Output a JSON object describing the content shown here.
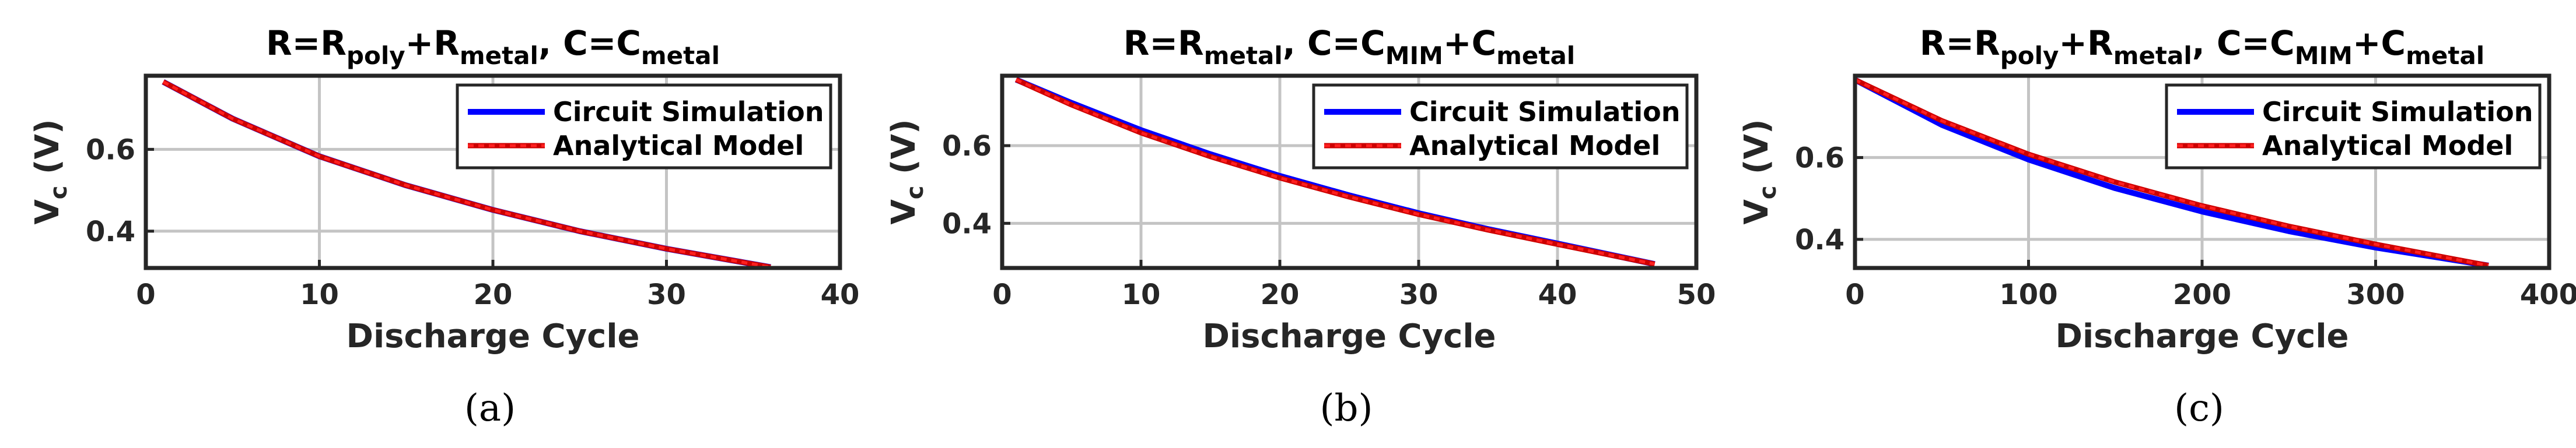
{
  "colors": {
    "simulation": "#0000ff",
    "model": "#cc0000",
    "model_dots": "#ff2020",
    "grid": "#c4c4c4",
    "axis": "#262626"
  },
  "legend": {
    "simulation_label": "Circuit Simulation",
    "model_label": "Analytical Model"
  },
  "chart_data": [
    {
      "type": "line",
      "title_parts": [
        {
          "text": "R=R",
          "sub": false
        },
        {
          "text": "poly",
          "sub": true
        },
        {
          "text": "+R",
          "sub": false
        },
        {
          "text": "metal",
          "sub": true
        },
        {
          "text": ", C=C",
          "sub": false
        },
        {
          "text": "metal",
          "sub": true
        }
      ],
      "xlabel": "Discharge Cycle",
      "ylabel": "V",
      "ylabel_sub": "c",
      "ylabel_unit": "(V)",
      "xlim": [
        0,
        40
      ],
      "ylim": [
        0.31,
        0.78
      ],
      "xticks": [
        0,
        10,
        20,
        30,
        40
      ],
      "yticks": [
        0.4,
        0.6
      ],
      "ytick_labels": [
        "0.4",
        "0.6"
      ],
      "legend_position": "top-right",
      "caption": "(a)",
      "series": [
        {
          "name": "Circuit Simulation",
          "x": [
            1,
            5,
            10,
            15,
            20,
            25,
            30,
            36
          ],
          "y": [
            0.765,
            0.675,
            0.583,
            0.512,
            0.452,
            0.4,
            0.357,
            0.312
          ]
        },
        {
          "name": "Analytical Model",
          "x": [
            1,
            5,
            10,
            15,
            20,
            25,
            30,
            36
          ],
          "y": [
            0.765,
            0.675,
            0.583,
            0.512,
            0.452,
            0.4,
            0.357,
            0.312
          ]
        }
      ]
    },
    {
      "type": "line",
      "title_parts": [
        {
          "text": "R=R",
          "sub": false
        },
        {
          "text": "metal",
          "sub": true
        },
        {
          "text": ", C=C",
          "sub": false
        },
        {
          "text": "MIM",
          "sub": true
        },
        {
          "text": "+C",
          "sub": false
        },
        {
          "text": "metal",
          "sub": true
        }
      ],
      "xlabel": "Discharge Cycle",
      "ylabel": "V",
      "ylabel_sub": "c",
      "ylabel_unit": "(V)",
      "xlim": [
        0,
        50
      ],
      "ylim": [
        0.285,
        0.78
      ],
      "xticks": [
        0,
        10,
        20,
        30,
        40,
        50
      ],
      "yticks": [
        0.4,
        0.6
      ],
      "ytick_labels": [
        "0.4",
        "0.6"
      ],
      "legend_position": "top-right",
      "caption": "(b)",
      "series": [
        {
          "name": "Circuit Simulation",
          "x": [
            1,
            5,
            10,
            15,
            20,
            25,
            30,
            35,
            40,
            47
          ],
          "y": [
            0.77,
            0.71,
            0.64,
            0.578,
            0.522,
            0.472,
            0.426,
            0.385,
            0.348,
            0.295
          ]
        },
        {
          "name": "Analytical Model",
          "x": [
            1,
            5,
            10,
            15,
            20,
            25,
            30,
            35,
            40,
            47
          ],
          "y": [
            0.77,
            0.705,
            0.633,
            0.572,
            0.517,
            0.468,
            0.423,
            0.383,
            0.346,
            0.295
          ]
        }
      ]
    },
    {
      "type": "line",
      "title_parts": [
        {
          "text": "R=R",
          "sub": false
        },
        {
          "text": "poly",
          "sub": true
        },
        {
          "text": "+R",
          "sub": false
        },
        {
          "text": "metal",
          "sub": true
        },
        {
          "text": ", C=C",
          "sub": false
        },
        {
          "text": "MIM",
          "sub": true
        },
        {
          "text": "+C",
          "sub": false
        },
        {
          "text": "metal",
          "sub": true
        }
      ],
      "xlabel": "Discharge Cycle",
      "ylabel": "V",
      "ylabel_sub": "c",
      "ylabel_unit": "(V)",
      "xlim": [
        0,
        400
      ],
      "ylim": [
        0.33,
        0.8
      ],
      "xticks": [
        0,
        100,
        200,
        300,
        400
      ],
      "yticks": [
        0.4,
        0.6
      ],
      "ytick_labels": [
        "0.4",
        "0.6"
      ],
      "legend_position": "top-right",
      "caption": "(c)",
      "series": [
        {
          "name": "Circuit Simulation",
          "x": [
            0,
            50,
            100,
            150,
            200,
            250,
            300,
            365
          ],
          "y": [
            0.79,
            0.68,
            0.595,
            0.525,
            0.468,
            0.42,
            0.38,
            0.336
          ]
        },
        {
          "name": "Analytical Model",
          "x": [
            0,
            50,
            100,
            150,
            200,
            250,
            300,
            365
          ],
          "y": [
            0.79,
            0.69,
            0.608,
            0.54,
            0.482,
            0.432,
            0.388,
            0.336
          ]
        }
      ]
    }
  ]
}
